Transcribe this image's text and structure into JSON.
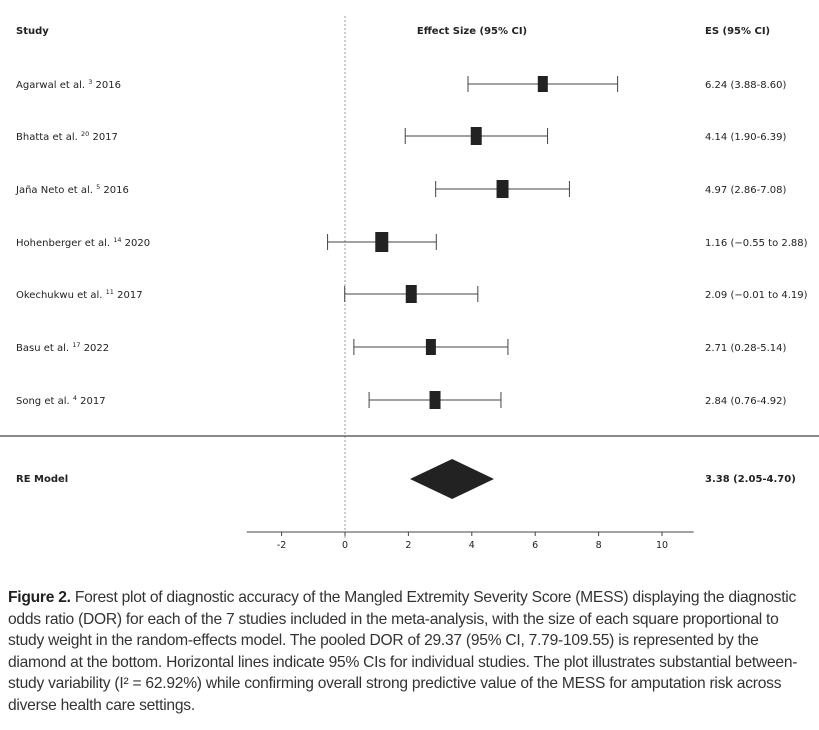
{
  "chart_data": {
    "type": "forest",
    "headers": {
      "study": "Study",
      "effect": "Effect Size (95% CI)",
      "es": "ES (95% CI)"
    },
    "studies": [
      {
        "name": "Agarwal et al.",
        "ref": "3",
        "year": "2016",
        "es": 6.24,
        "lo": 3.88,
        "hi": 8.6,
        "label": "6.24 (3.88-8.60)"
      },
      {
        "name": "Bhatta et al.",
        "ref": "20",
        "year": "2017",
        "es": 4.14,
        "lo": 1.9,
        "hi": 6.39,
        "label": "4.14 (1.90-6.39)"
      },
      {
        "name": "Jaña Neto et al.",
        "ref": "5",
        "year": "2016",
        "es": 4.97,
        "lo": 2.86,
        "hi": 7.08,
        "label": "4.97 (2.86-7.08)"
      },
      {
        "name": "Hohenberger et al.",
        "ref": "14",
        "year": "2020",
        "es": 1.16,
        "lo": -0.55,
        "hi": 2.88,
        "label": "1.16 (−0.55 to 2.88)"
      },
      {
        "name": "Okechukwu et al.",
        "ref": "11",
        "year": "2017",
        "es": 2.09,
        "lo": -0.01,
        "hi": 4.19,
        "label": "2.09 (−0.01 to 4.19)"
      },
      {
        "name": "Basu et al.",
        "ref": "17",
        "year": "2022",
        "es": 2.71,
        "lo": 0.28,
        "hi": 5.14,
        "label": "2.71 (0.28-5.14)"
      },
      {
        "name": "Song et al.",
        "ref": "4",
        "year": "2017",
        "es": 2.84,
        "lo": 0.76,
        "hi": 4.92,
        "label": "2.84 (0.76-4.92)"
      }
    ],
    "summary": {
      "name": "RE Model",
      "es": 3.38,
      "lo": 2.05,
      "hi": 4.7,
      "label": "3.38 (2.05-4.70)"
    },
    "reference_line": 0,
    "xlim": [
      -3.1,
      11.0
    ],
    "xticks": [
      -2,
      0,
      2,
      4,
      6,
      8,
      10
    ],
    "xtick_labels": [
      "-2",
      "0",
      "2",
      "4",
      "6",
      "8",
      "10"
    ],
    "marker_color": "#222222"
  },
  "caption": {
    "label": "Figure 2.",
    "text": " Forest plot of diagnostic accuracy of the Mangled Extremity Severity Score (MESS) displaying the diagnostic odds ratio (DOR) for each of the 7 studies included in the meta-analysis, with the size of each square proportional to study weight in the random-effects model. The pooled DOR of 29.37 (95% CI, 7.79-109.55) is represented by the diamond at the bottom. Horizontal lines indicate 95% CIs for individual studies. The plot illustrates substantial between-study variability (I² = 62.92%) while confirming overall strong predictive value of the MESS for amputation risk across diverse health care settings."
  }
}
